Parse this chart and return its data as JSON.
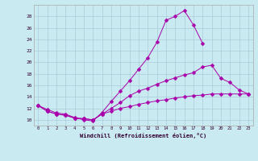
{
  "bg_color": "#c8eaf0",
  "line_color": "#aa00aa",
  "grid_color": "#aaccdd",
  "xlim": [
    -0.5,
    23.5
  ],
  "ylim": [
    9.0,
    30.0
  ],
  "xticks": [
    0,
    1,
    2,
    3,
    4,
    5,
    6,
    7,
    8,
    9,
    10,
    11,
    12,
    13,
    14,
    15,
    16,
    17,
    18,
    19,
    20,
    21,
    22,
    23
  ],
  "yticks": [
    10,
    12,
    14,
    16,
    18,
    20,
    22,
    24,
    26,
    28
  ],
  "xlabel": "Windchill (Refroidissement éolien,°C)",
  "line1_x": [
    0,
    1,
    2,
    3,
    4,
    5,
    6,
    7,
    8,
    9,
    10,
    11,
    12,
    13,
    14,
    15,
    16,
    17,
    18
  ],
  "line1_y": [
    12.5,
    11.8,
    11.2,
    11.0,
    10.4,
    10.0,
    9.8,
    11.3,
    13.2,
    15.0,
    16.8,
    18.8,
    20.8,
    23.5,
    27.3,
    28.0,
    29.0,
    26.5,
    23.3
  ],
  "line2_x": [
    0,
    1,
    2,
    3,
    4,
    5,
    6,
    7,
    8,
    9,
    10,
    11,
    12,
    13,
    14,
    15,
    16,
    17,
    18,
    19,
    20,
    21,
    22,
    23
  ],
  "line2_y": [
    12.5,
    11.5,
    11.0,
    10.8,
    10.3,
    10.2,
    10.0,
    11.0,
    12.0,
    13.0,
    14.2,
    15.0,
    15.5,
    16.2,
    16.8,
    17.3,
    17.8,
    18.2,
    19.2,
    19.5,
    17.2,
    16.5,
    15.2,
    14.5
  ],
  "line3_x": [
    0,
    1,
    2,
    3,
    4,
    5,
    6,
    7,
    8,
    9,
    10,
    11,
    12,
    13,
    14,
    15,
    16,
    17,
    18,
    19,
    20,
    21,
    22,
    23
  ],
  "line3_y": [
    12.5,
    11.5,
    11.0,
    10.8,
    10.3,
    10.2,
    10.0,
    11.0,
    11.5,
    12.0,
    12.3,
    12.7,
    13.0,
    13.3,
    13.5,
    13.8,
    14.0,
    14.2,
    14.3,
    14.5,
    14.5,
    14.5,
    14.5,
    14.5
  ]
}
